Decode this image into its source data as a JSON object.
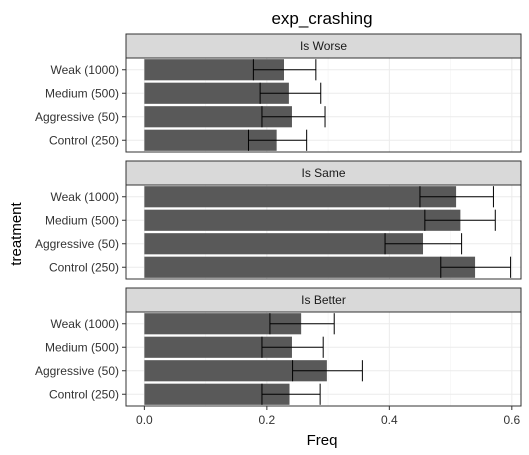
{
  "chart_data": {
    "type": "bar",
    "orientation": "horizontal",
    "title": "exp_crashing",
    "xlabel": "Freq",
    "ylabel": "treatment",
    "xlim": [
      -0.03,
      0.615
    ],
    "xticks": [
      0.0,
      0.2,
      0.4,
      0.6
    ],
    "xtick_labels": [
      "0.0",
      "0.2",
      "0.4",
      "0.6"
    ],
    "categories": [
      "Weak (1000)",
      "Medium (500)",
      "Aggressive (50)",
      "Control (250)"
    ],
    "grid": true,
    "bar_color": "#595959",
    "facets": [
      {
        "label": "Is Worse",
        "values": [
          0.228,
          0.236,
          0.241,
          0.216
        ],
        "error_low": [
          0.178,
          0.189,
          0.192,
          0.17
        ],
        "error_high": [
          0.28,
          0.288,
          0.295,
          0.265
        ]
      },
      {
        "label": "Is Same",
        "values": [
          0.509,
          0.516,
          0.455,
          0.54
        ],
        "error_low": [
          0.45,
          0.458,
          0.393,
          0.484
        ],
        "error_high": [
          0.57,
          0.573,
          0.518,
          0.598
        ]
      },
      {
        "label": "Is Better",
        "values": [
          0.256,
          0.241,
          0.298,
          0.237
        ],
        "error_low": [
          0.205,
          0.192,
          0.242,
          0.192
        ],
        "error_high": [
          0.31,
          0.292,
          0.356,
          0.287
        ]
      }
    ]
  }
}
